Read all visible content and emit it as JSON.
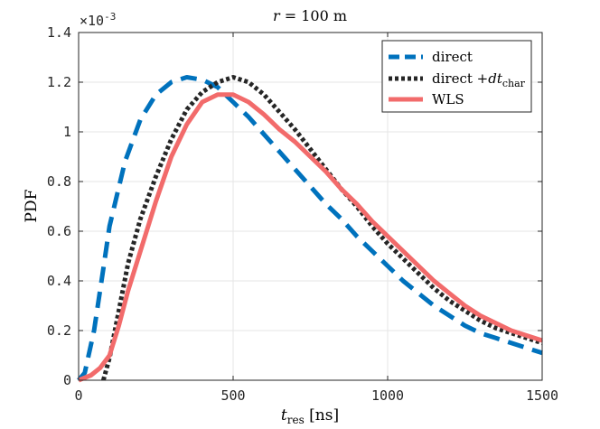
{
  "chart_data": {
    "type": "line",
    "title": "r = 100 m",
    "title_parts": {
      "var": "r",
      "eq": " = 100 ",
      "unit": "m"
    },
    "xlabel": "t_res [ns]",
    "xlabel_parts": {
      "base": "t",
      "sub": "res",
      "rest": " [ns]"
    },
    "ylabel": "PDF",
    "xlim": [
      0,
      1500
    ],
    "ylim": [
      0,
      0.0014
    ],
    "x_ticks": [
      0,
      500,
      1000,
      1500
    ],
    "x_tick_labels": [
      "0",
      "500",
      "1000",
      "1500"
    ],
    "y_ticks": [
      0,
      0.0002,
      0.0004,
      0.0006,
      0.0008,
      0.001,
      0.0012,
      0.0014
    ],
    "y_tick_labels": [
      "0",
      "0.2",
      "0.4",
      "0.6",
      "0.8",
      "1",
      "1.2",
      "1.4"
    ],
    "y_exponent_label": {
      "base": "×10",
      "exp": "-3"
    },
    "grid": true,
    "legend_position": "top-right",
    "series": [
      {
        "name": "direct",
        "legend": {
          "text": "direct"
        },
        "color": "#0072BD",
        "style": "dashed",
        "x": [
          0,
          20,
          50,
          80,
          100,
          150,
          200,
          250,
          300,
          350,
          400,
          450,
          500,
          550,
          600,
          650,
          700,
          750,
          800,
          850,
          900,
          950,
          1000,
          1050,
          1100,
          1150,
          1200,
          1250,
          1300,
          1350,
          1400,
          1450,
          1500
        ],
        "y": [
          0,
          3e-05,
          0.0002,
          0.00045,
          0.00062,
          0.00088,
          0.00105,
          0.00115,
          0.0012,
          0.00122,
          0.00121,
          0.00118,
          0.00112,
          0.00106,
          0.00099,
          0.00092,
          0.00085,
          0.00078,
          0.00071,
          0.00065,
          0.00058,
          0.00052,
          0.00046,
          0.0004,
          0.00035,
          0.0003,
          0.00026,
          0.00022,
          0.00019,
          0.00017,
          0.00015,
          0.00013,
          0.00011
        ]
      },
      {
        "name": "direct + dt_char",
        "legend": {
          "text": "direct +",
          "var": "dt",
          "sub": "char"
        },
        "color": "#262626",
        "style": "dotted",
        "x": [
          80,
          100,
          130,
          160,
          200,
          250,
          300,
          350,
          400,
          450,
          500,
          550,
          600,
          650,
          700,
          750,
          800,
          850,
          900,
          950,
          1000,
          1050,
          1100,
          1150,
          1200,
          1250,
          1300,
          1350,
          1400,
          1450,
          1500
        ],
        "y": [
          0,
          9e-05,
          0.00028,
          0.00047,
          0.00065,
          0.00082,
          0.00097,
          0.00109,
          0.00116,
          0.0012,
          0.00122,
          0.0012,
          0.00115,
          0.00108,
          0.00101,
          0.00093,
          0.00085,
          0.00077,
          0.0007,
          0.00062,
          0.00055,
          0.00049,
          0.00043,
          0.00037,
          0.00032,
          0.00028,
          0.00024,
          0.00021,
          0.00019,
          0.00017,
          0.00015
        ]
      },
      {
        "name": "WLS",
        "legend": {
          "text": "WLS"
        },
        "color": "#F26B6B",
        "style": "solid",
        "x": [
          0,
          40,
          70,
          100,
          130,
          160,
          200,
          250,
          300,
          350,
          400,
          450,
          500,
          550,
          600,
          650,
          700,
          750,
          800,
          850,
          900,
          950,
          1000,
          1050,
          1100,
          1150,
          1200,
          1250,
          1300,
          1350,
          1400,
          1450,
          1500
        ],
        "y": [
          0,
          2e-05,
          5e-05,
          0.0001,
          0.00022,
          0.00036,
          0.00052,
          0.00072,
          0.0009,
          0.00103,
          0.00112,
          0.00115,
          0.00115,
          0.00112,
          0.00107,
          0.00101,
          0.00096,
          0.0009,
          0.00084,
          0.00077,
          0.00071,
          0.00064,
          0.00058,
          0.00052,
          0.00046,
          0.0004,
          0.00035,
          0.0003,
          0.00026,
          0.00023,
          0.0002,
          0.00018,
          0.00016
        ]
      }
    ]
  }
}
